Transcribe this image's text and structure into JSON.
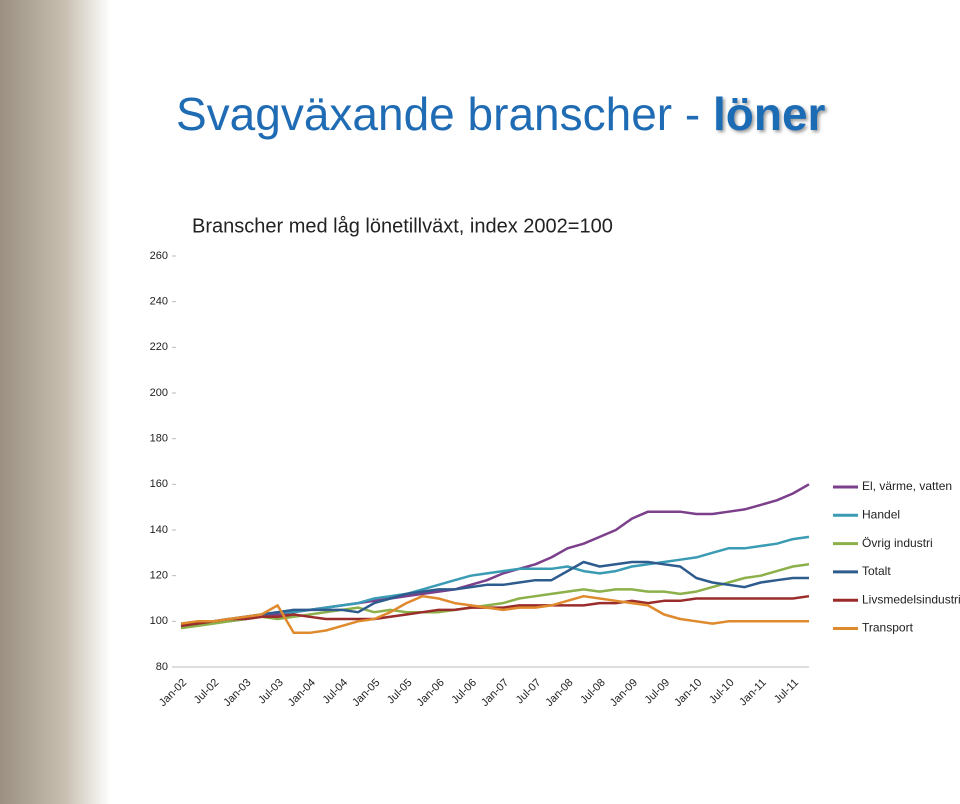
{
  "slide": {
    "title": "Svagväxande branscher -",
    "title_highlight": "löner"
  },
  "chart_data": {
    "type": "line",
    "title": "Branscher med låg lönetillväxt, index 2002=100",
    "categories": [
      "Jan-02",
      null,
      "Jul-02",
      null,
      "Jan-03",
      null,
      "Jul-03",
      null,
      "Jan-04",
      null,
      "Jul-04",
      null,
      "Jan-05",
      null,
      "Jul-05",
      null,
      "Jan-06",
      null,
      "Jul-06",
      null,
      "Jan-07",
      null,
      "Jul-07",
      null,
      "Jan-08",
      null,
      "Jul-08",
      null,
      "Jan-09",
      null,
      "Jul-09",
      null,
      "Jan-10",
      null,
      "Jul-10",
      null,
      "Jan-11",
      null,
      "Jul-11",
      null
    ],
    "ylim": [
      80,
      260
    ],
    "yticks": [
      80,
      100,
      120,
      140,
      160,
      180,
      200,
      220,
      240,
      260
    ],
    "grid": false,
    "legend": "right",
    "series": [
      {
        "name": "El, värme, vatten",
        "color": "#7b3f8c",
        "values": [
          98,
          99,
          100,
          100,
          101,
          102,
          103,
          104,
          105,
          106,
          107,
          108,
          109,
          110,
          111,
          112,
          113,
          114,
          116,
          118,
          121,
          123,
          125,
          128,
          132,
          134,
          137,
          140,
          145,
          148,
          148,
          148,
          147,
          147,
          148,
          149,
          151,
          153,
          156,
          160
        ]
      },
      {
        "name": "Handel",
        "color": "#3a9bb5",
        "values": [
          99,
          99,
          100,
          101,
          102,
          103,
          104,
          104,
          105,
          106,
          107,
          108,
          110,
          111,
          112,
          114,
          116,
          118,
          120,
          121,
          122,
          123,
          123,
          123,
          124,
          122,
          121,
          122,
          124,
          125,
          126,
          127,
          128,
          130,
          132,
          132,
          133,
          134,
          136,
          137
        ]
      },
      {
        "name": "Övrig industri",
        "color": "#8cb04a",
        "values": [
          97,
          98,
          99,
          100,
          101,
          102,
          101,
          102,
          103,
          104,
          105,
          106,
          104,
          105,
          104,
          104,
          104,
          105,
          106,
          107,
          108,
          110,
          111,
          112,
          113,
          114,
          113,
          114,
          114,
          113,
          113,
          112,
          113,
          115,
          117,
          119,
          120,
          122,
          124,
          125
        ]
      },
      {
        "name": "Totalt",
        "color": "#2e5c8e",
        "values": [
          99,
          99,
          100,
          101,
          102,
          103,
          104,
          105,
          105,
          105,
          105,
          104,
          108,
          110,
          112,
          113,
          114,
          114,
          115,
          116,
          116,
          117,
          118,
          118,
          122,
          126,
          124,
          125,
          126,
          126,
          125,
          124,
          119,
          117,
          116,
          115,
          117,
          118,
          119,
          119
        ]
      },
      {
        "name": "Livsmedelsindustri",
        "color": "#9b2c2c",
        "values": [
          98,
          99,
          100,
          101,
          101,
          102,
          102,
          103,
          102,
          101,
          101,
          101,
          101,
          102,
          103,
          104,
          105,
          105,
          106,
          106,
          106,
          107,
          107,
          107,
          107,
          107,
          108,
          108,
          109,
          108,
          109,
          109,
          110,
          110,
          110,
          110,
          110,
          110,
          110,
          111
        ]
      },
      {
        "name": "Transport",
        "color": "#e08a2e",
        "values": [
          99,
          100,
          100,
          101,
          102,
          103,
          107,
          95,
          95,
          96,
          98,
          100,
          101,
          104,
          108,
          111,
          110,
          108,
          107,
          106,
          105,
          106,
          106,
          107,
          109,
          111,
          110,
          109,
          108,
          107,
          103,
          101,
          100,
          99,
          100,
          100,
          100,
          100,
          100,
          100
        ]
      }
    ]
  }
}
